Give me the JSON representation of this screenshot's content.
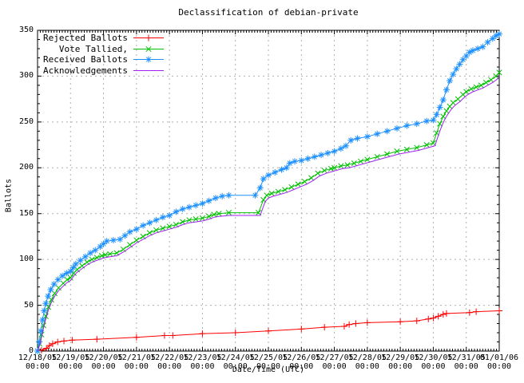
{
  "chart_data": {
    "type": "line",
    "title": "Declassification of debian-private",
    "xlabel": "Date/Time (UTC)",
    "ylabel": "Ballots",
    "ylim": [
      0,
      350
    ],
    "y_ticks": [
      0,
      50,
      100,
      150,
      200,
      250,
      300,
      350
    ],
    "x_range_days": [
      0,
      14
    ],
    "x_tick_labels": [
      {
        "date": "12/18/05",
        "time": "00:00"
      },
      {
        "date": "12/19/05",
        "time": "00:00"
      },
      {
        "date": "12/20/05",
        "time": "00:00"
      },
      {
        "date": "12/21/05",
        "time": "00:00"
      },
      {
        "date": "12/22/05",
        "time": "00:00"
      },
      {
        "date": "12/23/05",
        "time": "00:00"
      },
      {
        "date": "12/24/05",
        "time": "00:00"
      },
      {
        "date": "12/25/05",
        "time": "00:00"
      },
      {
        "date": "12/26/05",
        "time": "00:00"
      },
      {
        "date": "12/27/05",
        "time": "00:00"
      },
      {
        "date": "12/28/05",
        "time": "00:00"
      },
      {
        "date": "12/29/05",
        "time": "00:00"
      },
      {
        "date": "12/30/05",
        "time": "00:00"
      },
      {
        "date": "12/31/05",
        "time": "00:00"
      },
      {
        "date": "01/01/06",
        "time": "00:00"
      }
    ],
    "grid": true,
    "legend_position": "top-left",
    "style": {
      "background": "#ffffff",
      "grid_color": "#b0b0b0",
      "axis_color": "#000000",
      "text_color": "#000000"
    },
    "series": [
      {
        "name": "Rejected Ballots",
        "color": "#ff0000",
        "marker": "plus",
        "points": [
          [
            0,
            0
          ],
          [
            0.12,
            1
          ],
          [
            0.27,
            3
          ],
          [
            0.36,
            6
          ],
          [
            0.46,
            8
          ],
          [
            0.61,
            10
          ],
          [
            0.8,
            11
          ],
          [
            1.05,
            12
          ],
          [
            1.8,
            13
          ],
          [
            3.0,
            15
          ],
          [
            3.85,
            17
          ],
          [
            4.1,
            17
          ],
          [
            5.0,
            19
          ],
          [
            6.0,
            20
          ],
          [
            7.0,
            22
          ],
          [
            8.0,
            24
          ],
          [
            8.7,
            26
          ],
          [
            9.3,
            27
          ],
          [
            9.45,
            29
          ],
          [
            9.65,
            30
          ],
          [
            10.0,
            31
          ],
          [
            11.0,
            32
          ],
          [
            11.5,
            33
          ],
          [
            11.85,
            35
          ],
          [
            12.0,
            36
          ],
          [
            12.15,
            38
          ],
          [
            12.3,
            40
          ],
          [
            12.4,
            41
          ],
          [
            13.1,
            42
          ],
          [
            13.3,
            43
          ],
          [
            14.0,
            44
          ]
        ]
      },
      {
        "name": "Vote Tallied,",
        "color": "#00c000",
        "marker": "cross",
        "points": [
          [
            0,
            0
          ],
          [
            0.06,
            8
          ],
          [
            0.12,
            18
          ],
          [
            0.18,
            28
          ],
          [
            0.25,
            38
          ],
          [
            0.33,
            48
          ],
          [
            0.42,
            56
          ],
          [
            0.52,
            63
          ],
          [
            0.64,
            69
          ],
          [
            0.78,
            74
          ],
          [
            0.9,
            78
          ],
          [
            1.0,
            80
          ],
          [
            1.1,
            85
          ],
          [
            1.2,
            89
          ],
          [
            1.35,
            93
          ],
          [
            1.5,
            97
          ],
          [
            1.65,
            100
          ],
          [
            1.8,
            102
          ],
          [
            1.95,
            104
          ],
          [
            2.05,
            105
          ],
          [
            2.2,
            106
          ],
          [
            2.4,
            107
          ],
          [
            2.6,
            111
          ],
          [
            2.8,
            116
          ],
          [
            3.0,
            121
          ],
          [
            3.2,
            125
          ],
          [
            3.4,
            129
          ],
          [
            3.6,
            132
          ],
          [
            3.8,
            134
          ],
          [
            4.0,
            136
          ],
          [
            4.2,
            138
          ],
          [
            4.4,
            141
          ],
          [
            4.6,
            143
          ],
          [
            4.8,
            144
          ],
          [
            5.0,
            145
          ],
          [
            5.2,
            147
          ],
          [
            5.35,
            149
          ],
          [
            5.5,
            150
          ],
          [
            5.8,
            151
          ],
          [
            6.7,
            151
          ],
          [
            6.85,
            165
          ],
          [
            6.95,
            170
          ],
          [
            7.1,
            172
          ],
          [
            7.3,
            174
          ],
          [
            7.5,
            176
          ],
          [
            7.7,
            179
          ],
          [
            7.9,
            182
          ],
          [
            8.1,
            185
          ],
          [
            8.3,
            189
          ],
          [
            8.5,
            194
          ],
          [
            8.7,
            197
          ],
          [
            8.9,
            199
          ],
          [
            9.0,
            200
          ],
          [
            9.2,
            202
          ],
          [
            9.4,
            203
          ],
          [
            9.6,
            205
          ],
          [
            9.8,
            207
          ],
          [
            10.0,
            209
          ],
          [
            10.3,
            212
          ],
          [
            10.6,
            215
          ],
          [
            10.9,
            218
          ],
          [
            11.2,
            220
          ],
          [
            11.5,
            222
          ],
          [
            11.8,
            225
          ],
          [
            12.0,
            227
          ],
          [
            12.1,
            238
          ],
          [
            12.2,
            248
          ],
          [
            12.3,
            256
          ],
          [
            12.4,
            262
          ],
          [
            12.5,
            267
          ],
          [
            12.6,
            271
          ],
          [
            12.75,
            275
          ],
          [
            12.9,
            280
          ],
          [
            13.0,
            283
          ],
          [
            13.15,
            286
          ],
          [
            13.3,
            288
          ],
          [
            13.45,
            290
          ],
          [
            13.6,
            293
          ],
          [
            13.75,
            296
          ],
          [
            13.9,
            300
          ],
          [
            14.0,
            304
          ]
        ]
      },
      {
        "name": "Received Ballots",
        "color": "#1e90ff",
        "marker": "star",
        "points": [
          [
            0,
            0
          ],
          [
            0.05,
            10
          ],
          [
            0.1,
            22
          ],
          [
            0.15,
            34
          ],
          [
            0.2,
            44
          ],
          [
            0.25,
            52
          ],
          [
            0.32,
            60
          ],
          [
            0.4,
            67
          ],
          [
            0.5,
            73
          ],
          [
            0.62,
            78
          ],
          [
            0.75,
            82
          ],
          [
            0.88,
            85
          ],
          [
            1.0,
            87
          ],
          [
            1.08,
            91
          ],
          [
            1.16,
            95
          ],
          [
            1.3,
            99
          ],
          [
            1.45,
            103
          ],
          [
            1.6,
            107
          ],
          [
            1.75,
            110
          ],
          [
            1.9,
            114
          ],
          [
            2.0,
            117
          ],
          [
            2.1,
            120
          ],
          [
            2.3,
            121
          ],
          [
            2.5,
            122
          ],
          [
            2.65,
            126
          ],
          [
            2.8,
            130
          ],
          [
            3.0,
            133
          ],
          [
            3.2,
            137
          ],
          [
            3.4,
            140
          ],
          [
            3.6,
            143
          ],
          [
            3.8,
            146
          ],
          [
            4.0,
            148
          ],
          [
            4.2,
            152
          ],
          [
            4.4,
            155
          ],
          [
            4.6,
            157
          ],
          [
            4.8,
            159
          ],
          [
            5.0,
            161
          ],
          [
            5.2,
            164
          ],
          [
            5.4,
            167
          ],
          [
            5.6,
            169
          ],
          [
            5.8,
            170
          ],
          [
            6.6,
            170
          ],
          [
            6.75,
            178
          ],
          [
            6.85,
            188
          ],
          [
            7.0,
            192
          ],
          [
            7.2,
            195
          ],
          [
            7.4,
            198
          ],
          [
            7.55,
            200
          ],
          [
            7.65,
            205
          ],
          [
            7.8,
            207
          ],
          [
            8.0,
            208
          ],
          [
            8.2,
            210
          ],
          [
            8.4,
            212
          ],
          [
            8.6,
            214
          ],
          [
            8.8,
            216
          ],
          [
            9.0,
            218
          ],
          [
            9.2,
            221
          ],
          [
            9.35,
            224
          ],
          [
            9.5,
            230
          ],
          [
            9.7,
            232
          ],
          [
            10.0,
            234
          ],
          [
            10.3,
            237
          ],
          [
            10.6,
            240
          ],
          [
            10.9,
            243
          ],
          [
            11.2,
            246
          ],
          [
            11.5,
            248
          ],
          [
            11.8,
            251
          ],
          [
            12.0,
            252
          ],
          [
            12.1,
            258
          ],
          [
            12.2,
            266
          ],
          [
            12.3,
            274
          ],
          [
            12.4,
            285
          ],
          [
            12.5,
            295
          ],
          [
            12.6,
            302
          ],
          [
            12.7,
            308
          ],
          [
            12.8,
            313
          ],
          [
            12.9,
            318
          ],
          [
            13.0,
            322
          ],
          [
            13.1,
            326
          ],
          [
            13.2,
            328
          ],
          [
            13.35,
            330
          ],
          [
            13.5,
            332
          ],
          [
            13.65,
            337
          ],
          [
            13.8,
            341
          ],
          [
            13.9,
            344
          ],
          [
            14.0,
            346
          ]
        ]
      },
      {
        "name": "Acknowledgements",
        "color": "#a020f0",
        "marker": "none",
        "points": [
          [
            0,
            0
          ],
          [
            0.06,
            6
          ],
          [
            0.12,
            15
          ],
          [
            0.18,
            25
          ],
          [
            0.25,
            35
          ],
          [
            0.33,
            45
          ],
          [
            0.42,
            53
          ],
          [
            0.52,
            60
          ],
          [
            0.64,
            66
          ],
          [
            0.78,
            71
          ],
          [
            0.9,
            75
          ],
          [
            1.0,
            77
          ],
          [
            1.1,
            82
          ],
          [
            1.2,
            86
          ],
          [
            1.35,
            90
          ],
          [
            1.5,
            94
          ],
          [
            1.65,
            97
          ],
          [
            1.8,
            99
          ],
          [
            1.95,
            101
          ],
          [
            2.05,
            102
          ],
          [
            2.2,
            103
          ],
          [
            2.4,
            104
          ],
          [
            2.6,
            108
          ],
          [
            2.8,
            113
          ],
          [
            3.0,
            118
          ],
          [
            3.2,
            122
          ],
          [
            3.4,
            126
          ],
          [
            3.6,
            129
          ],
          [
            3.8,
            131
          ],
          [
            4.0,
            133
          ],
          [
            4.2,
            135
          ],
          [
            4.4,
            138
          ],
          [
            4.6,
            140
          ],
          [
            4.8,
            141
          ],
          [
            5.0,
            142
          ],
          [
            5.2,
            144
          ],
          [
            5.35,
            146
          ],
          [
            5.5,
            147
          ],
          [
            5.8,
            148
          ],
          [
            6.75,
            148
          ],
          [
            6.9,
            163
          ],
          [
            7.0,
            167
          ],
          [
            7.15,
            169
          ],
          [
            7.35,
            171
          ],
          [
            7.55,
            173
          ],
          [
            7.75,
            176
          ],
          [
            7.95,
            179
          ],
          [
            8.15,
            182
          ],
          [
            8.35,
            186
          ],
          [
            8.55,
            191
          ],
          [
            8.75,
            194
          ],
          [
            8.95,
            196
          ],
          [
            9.05,
            197
          ],
          [
            9.25,
            199
          ],
          [
            9.45,
            200
          ],
          [
            9.65,
            202
          ],
          [
            9.85,
            204
          ],
          [
            10.05,
            206
          ],
          [
            10.35,
            209
          ],
          [
            10.65,
            212
          ],
          [
            10.95,
            215
          ],
          [
            11.25,
            217
          ],
          [
            11.55,
            219
          ],
          [
            11.85,
            222
          ],
          [
            12.05,
            224
          ],
          [
            12.15,
            235
          ],
          [
            12.25,
            245
          ],
          [
            12.35,
            253
          ],
          [
            12.45,
            259
          ],
          [
            12.55,
            264
          ],
          [
            12.65,
            268
          ],
          [
            12.8,
            272
          ],
          [
            12.95,
            277
          ],
          [
            13.05,
            280
          ],
          [
            13.2,
            283
          ],
          [
            13.35,
            285
          ],
          [
            13.5,
            287
          ],
          [
            13.65,
            290
          ],
          [
            13.8,
            293
          ],
          [
            13.95,
            297
          ],
          [
            14.0,
            300
          ]
        ]
      }
    ]
  }
}
